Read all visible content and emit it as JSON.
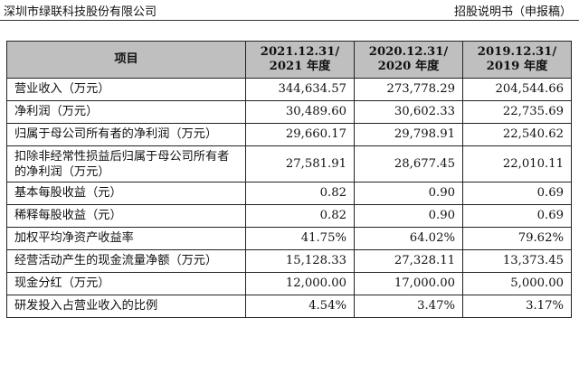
{
  "header": {
    "company": "深圳市绿联科技股份有限公司",
    "doc": "招股说明书（申报稿）"
  },
  "table": {
    "col_item": "项目",
    "cols": [
      {
        "line1": "2021.12.31/",
        "line2": "2021 年度"
      },
      {
        "line1": "2020.12.31/",
        "line2": "2020 年度"
      },
      {
        "line1": "2019.12.31/",
        "line2": "2019 年度"
      }
    ],
    "rows": [
      {
        "label": "营业收入（万元）",
        "v": [
          "344,634.57",
          "273,778.29",
          "204,544.66"
        ]
      },
      {
        "label": "净利润（万元）",
        "v": [
          "30,489.60",
          "30,602.33",
          "22,735.69"
        ]
      },
      {
        "label": "归属于母公司所有者的净利润（万元）",
        "v": [
          "29,660.17",
          "29,798.91",
          "22,540.62"
        ]
      },
      {
        "label": "扣除非经常性损益后归属于母公司所有者的净利润（万元）",
        "v": [
          "27,581.91",
          "28,677.45",
          "22,010.11"
        ]
      },
      {
        "label": "基本每股收益（元）",
        "v": [
          "0.82",
          "0.90",
          "0.69"
        ]
      },
      {
        "label": "稀释每股收益（元）",
        "v": [
          "0.82",
          "0.90",
          "0.69"
        ]
      },
      {
        "label": "加权平均净资产收益率",
        "v": [
          "41.75%",
          "64.02%",
          "79.62%"
        ]
      },
      {
        "label": "经营活动产生的现金流量净额（万元）",
        "v": [
          "15,128.33",
          "27,328.11",
          "13,373.45"
        ]
      },
      {
        "label": "现金分红（万元）",
        "v": [
          "12,000.00",
          "17,000.00",
          "5,000.00"
        ]
      },
      {
        "label": "研发投入占营业收入的比例",
        "v": [
          "4.54%",
          "3.47%",
          "3.17%"
        ]
      }
    ]
  }
}
